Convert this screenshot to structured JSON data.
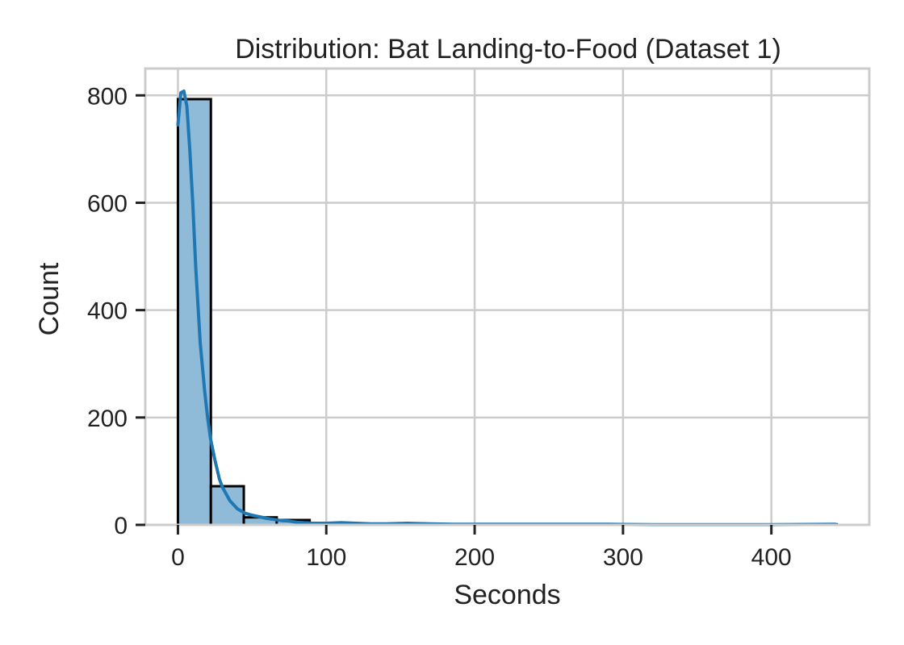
{
  "chart_data": {
    "type": "bar",
    "title": "Distribution: Bat Landing-to-Food (Dataset 1)",
    "xlabel": "Seconds",
    "ylabel": "Count",
    "xlim": [
      -22,
      466
    ],
    "ylim": [
      0,
      850
    ],
    "grid": true,
    "x_ticks": [
      0,
      100,
      200,
      300,
      400
    ],
    "y_ticks": [
      0,
      200,
      400,
      600,
      800
    ],
    "bin_width": 22.2,
    "bins": [
      {
        "start": 0.0,
        "end": 22.2,
        "count": 793
      },
      {
        "start": 22.2,
        "end": 44.4,
        "count": 72
      },
      {
        "start": 44.4,
        "end": 66.6,
        "count": 14
      },
      {
        "start": 66.6,
        "end": 88.8,
        "count": 9
      },
      {
        "start": 88.8,
        "end": 111.0,
        "count": 2
      },
      {
        "start": 111.0,
        "end": 133.2,
        "count": 1
      },
      {
        "start": 133.2,
        "end": 155.4,
        "count": 1
      },
      {
        "start": 155.4,
        "end": 177.6,
        "count": 1
      },
      {
        "start": 177.6,
        "end": 199.8,
        "count": 0
      },
      {
        "start": 199.8,
        "end": 222.0,
        "count": 0
      },
      {
        "start": 222.0,
        "end": 244.2,
        "count": 1
      },
      {
        "start": 244.2,
        "end": 266.4,
        "count": 0
      },
      {
        "start": 266.4,
        "end": 288.6,
        "count": 1
      },
      {
        "start": 288.6,
        "end": 310.8,
        "count": 0
      },
      {
        "start": 310.8,
        "end": 333.0,
        "count": 0
      },
      {
        "start": 333.0,
        "end": 355.2,
        "count": 0
      },
      {
        "start": 355.2,
        "end": 377.4,
        "count": 0
      },
      {
        "start": 377.4,
        "end": 399.6,
        "count": 0
      },
      {
        "start": 399.6,
        "end": 421.8,
        "count": 0
      },
      {
        "start": 421.8,
        "end": 444.0,
        "count": 1
      }
    ],
    "kde": {
      "x": [
        0,
        2,
        4,
        6,
        8,
        10,
        12,
        15,
        18,
        20,
        22,
        25,
        28,
        30,
        35,
        40,
        45,
        50,
        55,
        60,
        65,
        70,
        75,
        80,
        90,
        100,
        110,
        120,
        130,
        140,
        155,
        170,
        185,
        200,
        230,
        260,
        290,
        320,
        360,
        400,
        443
      ],
      "y": [
        745,
        805,
        808,
        780,
        700,
        600,
        480,
        340,
        250,
        200,
        160,
        120,
        85,
        70,
        45,
        30,
        22,
        18,
        15,
        12,
        10,
        8,
        7,
        5,
        3,
        3,
        4,
        3,
        2,
        2,
        3,
        2,
        1,
        1,
        1,
        1,
        1,
        0.5,
        0.5,
        0.5,
        1
      ]
    },
    "colors": {
      "bar_fill": "#8fbbd9",
      "bar_edge": "#000000",
      "kde_line": "#1f77b4",
      "grid": "#cccccc",
      "spine": "#cccccc",
      "text": "#222222"
    }
  }
}
